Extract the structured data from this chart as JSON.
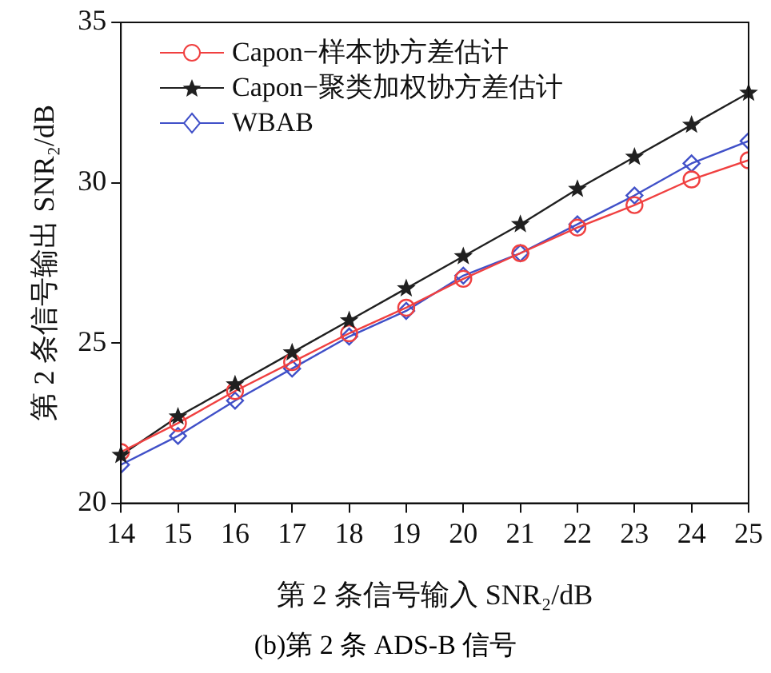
{
  "chart_data": {
    "type": "line",
    "xlabel": "第 2 条信号输入 SNR₂/dB",
    "ylabel": "第 2 条信号输出 SNR₂/dB",
    "annotations": [
      "(b)第 2 条 ADS-B 信号"
    ],
    "x": [
      14,
      15,
      16,
      17,
      18,
      19,
      20,
      21,
      22,
      23,
      24,
      25
    ],
    "xlim": [
      14,
      25
    ],
    "xticks": [
      14,
      15,
      16,
      17,
      18,
      19,
      20,
      21,
      22,
      23,
      24,
      25
    ],
    "ylim": [
      20,
      35
    ],
    "yticks": [
      20,
      25,
      30,
      35
    ],
    "grid": false,
    "legend": "top left",
    "series": [
      {
        "name": "Capon−样本协方差估计",
        "color": "#f04040",
        "marker": "circle",
        "values": [
          21.6,
          22.5,
          23.5,
          24.4,
          25.3,
          26.1,
          27.0,
          27.8,
          28.6,
          29.3,
          30.1,
          30.7
        ]
      },
      {
        "name": "Capon−聚类加权协方差估计",
        "color": "#202020",
        "marker": "star",
        "values": [
          21.5,
          22.7,
          23.7,
          24.7,
          25.7,
          26.7,
          27.7,
          28.7,
          29.8,
          30.8,
          31.8,
          32.8
        ]
      },
      {
        "name": "WBAB",
        "color": "#4050c8",
        "marker": "diamond",
        "values": [
          21.2,
          22.1,
          23.2,
          24.2,
          25.2,
          26.0,
          27.1,
          27.8,
          28.7,
          29.6,
          30.6,
          31.3
        ]
      }
    ]
  }
}
